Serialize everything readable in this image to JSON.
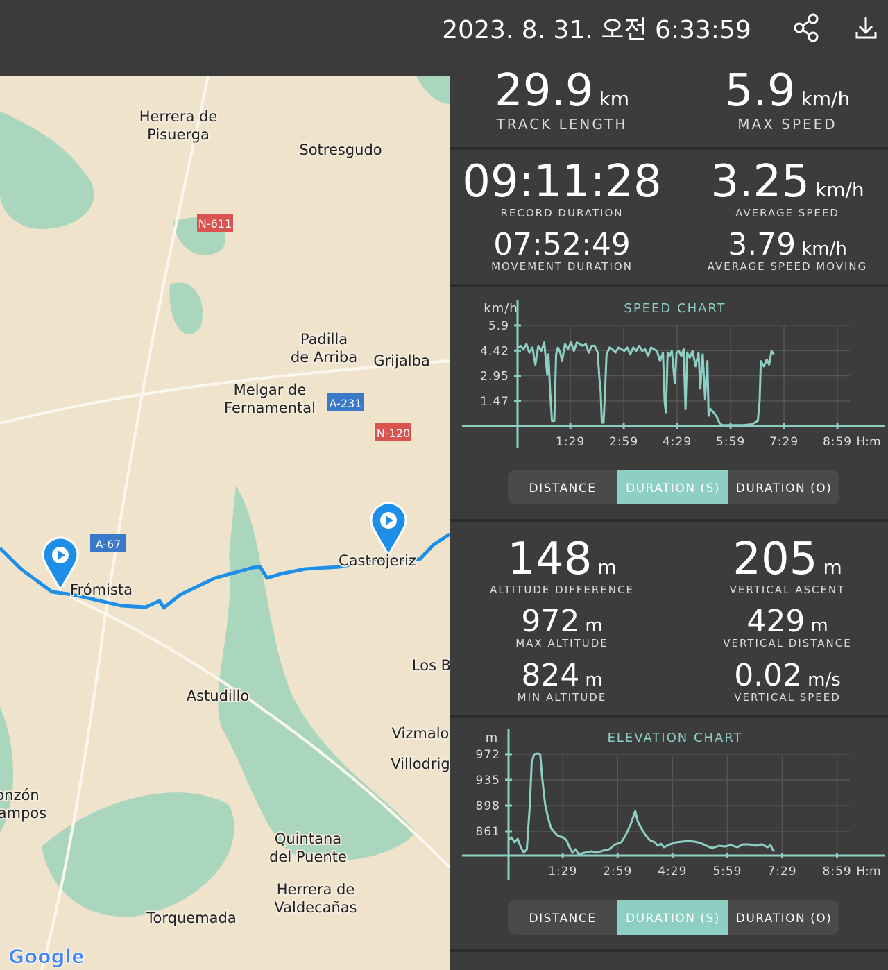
{
  "header": {
    "title": "2023. 8. 31. 오전 6:33:59"
  },
  "map": {
    "labels": [
      "Herrera de",
      "Pisuerga",
      "Sotresgudo",
      "Padilla",
      "de Arriba",
      "Grijalba",
      "Melgar de",
      "Fernamental",
      "Castrojeriz",
      "Frómista",
      "Los B",
      "Astudillo",
      "Vizmalo",
      "Villodrig",
      "onzón",
      "ampos",
      "Quintana",
      "del Puente",
      "Herrera de",
      "Valdecañas",
      "Torquemada"
    ],
    "roads": [
      {
        "name": "N-611",
        "color": "#d9534f"
      },
      {
        "name": "A-231",
        "color": "#3a78c8"
      },
      {
        "name": "N-120",
        "color": "#d9534f"
      },
      {
        "name": "A-67",
        "color": "#3a78c8"
      }
    ],
    "logo": "Google"
  },
  "stats": [
    {
      "value": 29.9,
      "unit": "km",
      "label": "TRACK LENGTH"
    },
    {
      "value": 5.9,
      "unit": "km/h",
      "label": "MAX SPEED"
    },
    {
      "value": "09:11:28",
      "label": "RECORD DURATION"
    },
    {
      "value": 3.25,
      "unit": "km/h",
      "label": "AVERAGE SPEED"
    },
    {
      "value": "07:52:49",
      "label": "MOVEMENT DURATION"
    },
    {
      "value": 3.79,
      "unit": "km/h",
      "label": "AVERAGE SPEED MOVING"
    },
    {
      "value": 148,
      "unit": "m",
      "label": "ALTITUDE DIFFERENCE"
    },
    {
      "value": 205,
      "unit": "m",
      "label": "VERTICAL ASCENT"
    },
    {
      "value": 972,
      "unit": "m",
      "label": "MAX ALTITUDE"
    },
    {
      "value": 429,
      "unit": "m",
      "label": "VERTICAL DISTANCE"
    },
    {
      "value": 824,
      "unit": "m",
      "label": "MIN ALTITUDE"
    },
    {
      "value": 0.02,
      "unit": "m/s",
      "label": "VERTICAL SPEED"
    }
  ],
  "chart_data": [
    {
      "type": "line",
      "title": "SPEED CHART",
      "y_label": "km/h",
      "x_label": "H:m",
      "color": "#8ecfc4",
      "grid": true,
      "x": [
        0,
        5,
        10,
        15,
        20,
        25,
        30,
        35,
        40,
        45,
        50,
        52,
        55,
        58,
        62,
        65,
        68,
        72,
        75,
        80,
        85,
        90,
        95,
        100,
        105,
        110,
        115,
        120,
        125,
        130,
        135,
        138,
        140,
        142,
        145,
        148,
        150,
        155,
        160,
        165,
        170,
        175,
        180,
        185,
        190,
        195,
        200,
        205,
        210,
        215,
        220,
        225,
        230,
        235,
        240,
        245,
        248,
        250,
        253,
        256,
        260,
        265,
        268,
        272,
        276,
        280,
        283,
        286,
        290,
        295,
        300,
        305,
        308,
        312,
        316,
        320,
        322,
        325,
        330,
        335,
        340,
        345,
        360,
        380,
        395,
        405,
        408,
        410,
        415,
        420,
        424,
        428,
        432
      ],
      "values": [
        4.6,
        4.7,
        4.5,
        4.8,
        4.3,
        4.6,
        3.6,
        4.7,
        4.4,
        4.9,
        3.0,
        4.2,
        2.0,
        0.3,
        0.3,
        4.2,
        4.6,
        4.3,
        3.8,
        4.8,
        4.5,
        4.9,
        4.4,
        4.9,
        4.8,
        4.7,
        4.8,
        4.3,
        4.7,
        4.7,
        4.3,
        2.8,
        2.0,
        0.2,
        0.2,
        2.5,
        4.2,
        4.6,
        4.5,
        4.3,
        4.6,
        4.5,
        4.4,
        4.6,
        4.2,
        4.6,
        4.4,
        4.7,
        4.4,
        4.5,
        4.1,
        4.6,
        4.5,
        4.4,
        3.8,
        4.3,
        1.4,
        0.8,
        4.3,
        4.1,
        4.4,
        2.5,
        4.3,
        4.4,
        4.1,
        4.5,
        1.0,
        4.3,
        4.0,
        4.4,
        3.5,
        4.3,
        2.2,
        4.2,
        1.6,
        3.8,
        0.6,
        1.0,
        0.8,
        0.6,
        0.2,
        0.05,
        0.05,
        0.05,
        0.1,
        0.3,
        1.5,
        3.8,
        3.5,
        3.9,
        3.6,
        4.4,
        4.2
      ],
      "xlim": [
        0,
        560
      ],
      "ylim": [
        0,
        7.4
      ],
      "yticks": [
        1.47,
        2.95,
        4.42,
        5.9
      ],
      "xticks": [
        {
          "value": 89,
          "label": "1:29"
        },
        {
          "value": 179,
          "label": "2:59"
        },
        {
          "value": 269,
          "label": "4:29"
        },
        {
          "value": 359,
          "label": "5:59"
        },
        {
          "value": 449,
          "label": "7:29"
        },
        {
          "value": 539,
          "label": "8:59"
        }
      ],
      "modes": [
        "DISTANCE",
        "DURATION (S)",
        "DURATION (O)"
      ]
    },
    {
      "type": "line",
      "title": "ELEVATION CHART",
      "y_label": "m",
      "x_label": "H:m",
      "color": "#8ecfc4",
      "grid": true,
      "x": [
        0,
        5,
        10,
        15,
        20,
        25,
        30,
        35,
        38,
        42,
        48,
        52,
        55,
        60,
        65,
        70,
        75,
        80,
        85,
        90,
        95,
        100,
        105,
        110,
        115,
        125,
        135,
        145,
        155,
        165,
        175,
        185,
        192,
        200,
        208,
        212,
        218,
        225,
        232,
        240,
        245,
        250,
        255,
        265,
        275,
        285,
        295,
        305,
        315,
        325,
        330,
        335,
        345,
        355,
        365,
        375,
        385,
        395,
        405,
        415,
        425,
        430,
        433,
        436
      ],
      "values": [
        848,
        852,
        845,
        850,
        838,
        830,
        835,
        900,
        960,
        972,
        973,
        972,
        940,
        900,
        880,
        865,
        860,
        855,
        853,
        852,
        848,
        838,
        830,
        835,
        828,
        830,
        832,
        830,
        833,
        835,
        842,
        845,
        855,
        870,
        890,
        875,
        865,
        855,
        848,
        845,
        840,
        843,
        838,
        842,
        845,
        846,
        847,
        846,
        844,
        840,
        838,
        837,
        840,
        839,
        841,
        838,
        842,
        842,
        840,
        842,
        838,
        841,
        835,
        832
      ],
      "xlim": [
        0,
        560
      ],
      "ylim": [
        826,
        1008
      ],
      "yticks": [
        861,
        898,
        935,
        972
      ],
      "xticks": [
        {
          "value": 89,
          "label": "1:29"
        },
        {
          "value": 179,
          "label": "2:59"
        },
        {
          "value": 269,
          "label": "4:29"
        },
        {
          "value": 359,
          "label": "5:59"
        },
        {
          "value": 449,
          "label": "7:29"
        },
        {
          "value": 539,
          "label": "8:59"
        }
      ],
      "modes": [
        "DISTANCE",
        "DURATION (S)",
        "DURATION (O)"
      ]
    }
  ]
}
